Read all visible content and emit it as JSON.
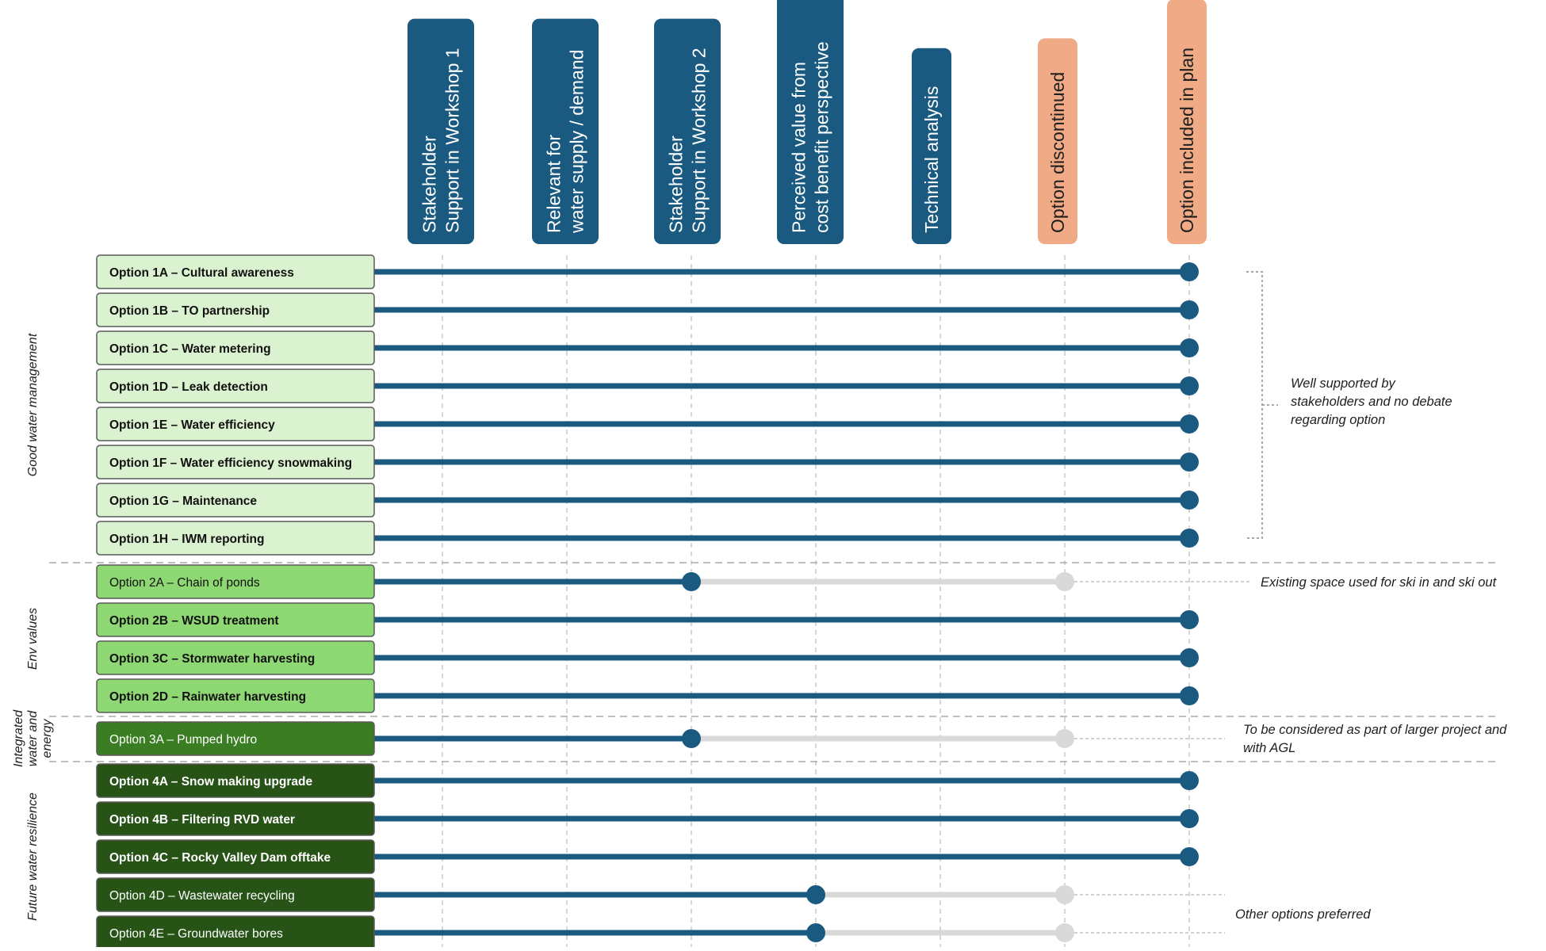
{
  "colors": {
    "navy": "#1a5a80",
    "salmon": "#f0aa85",
    "track_grey": "#d9d9d9",
    "light_green": "#daf2d0",
    "mid_green": "#8ed873",
    "dark_green": "#275317",
    "box_border": "#5a5a5a",
    "guide": "#c8c8c8"
  },
  "stages": [
    {
      "lines": [
        "Stakeholder",
        "Support in Workshop 1"
      ],
      "style": "navy"
    },
    {
      "lines": [
        "Relevant for",
        "water supply / demand"
      ],
      "style": "navy"
    },
    {
      "lines": [
        "Stakeholder",
        "Support in Workshop 2"
      ],
      "style": "navy"
    },
    {
      "lines": [
        "Perceived value from",
        "cost benefit perspective"
      ],
      "style": "navy"
    },
    {
      "lines": [
        "Technical analysis"
      ],
      "style": "navy"
    },
    {
      "lines": [
        "Option discontinued"
      ],
      "style": "salmon"
    },
    {
      "lines": [
        "Option included in plan"
      ],
      "style": "salmon"
    }
  ],
  "groups": [
    {
      "lines": [
        "Good water management"
      ],
      "first_row": 0,
      "last_row": 7
    },
    {
      "lines": [
        "Env values"
      ],
      "first_row": 8,
      "last_row": 11
    },
    {
      "lines": [
        "Integrated",
        "water and",
        "energy"
      ],
      "first_row": 12,
      "last_row": 12
    },
    {
      "lines": [
        "Future water resilience"
      ],
      "first_row": 13,
      "last_row": 17
    }
  ],
  "options": [
    {
      "code": "Option 1A",
      "name": "Cultural awareness",
      "tone": "light",
      "bold": true,
      "outcome": "included"
    },
    {
      "code": "Option 1B",
      "name": "TO partnership",
      "tone": "light",
      "bold": true,
      "outcome": "included"
    },
    {
      "code": "Option 1C",
      "name": "Water metering",
      "tone": "light",
      "bold": true,
      "outcome": "included"
    },
    {
      "code": "Option 1D",
      "name": "Leak detection",
      "tone": "light",
      "bold": true,
      "outcome": "included"
    },
    {
      "code": "Option 1E",
      "name": "Water efficiency",
      "tone": "light",
      "bold": true,
      "outcome": "included"
    },
    {
      "code": "Option 1F",
      "name": "Water efficiency snowmaking",
      "tone": "light",
      "bold": true,
      "outcome": "included"
    },
    {
      "code": "Option 1G",
      "name": "Maintenance",
      "tone": "light",
      "bold": true,
      "outcome": "included"
    },
    {
      "code": "Option 1H",
      "name": "IWM reporting",
      "tone": "light",
      "bold": true,
      "outcome": "included"
    },
    {
      "code": "Option 2A",
      "name": "Chain of ponds",
      "tone": "mid",
      "bold": false,
      "outcome": "discontinued",
      "stop_stage": 3
    },
    {
      "code": "Option 2B",
      "name": "WSUD treatment",
      "tone": "mid",
      "bold": true,
      "outcome": "included"
    },
    {
      "code": "Option 3C",
      "name": "Stormwater harvesting",
      "tone": "mid",
      "bold": true,
      "outcome": "included"
    },
    {
      "code": "Option 2D",
      "name": "Rainwater harvesting",
      "tone": "mid",
      "bold": true,
      "outcome": "included"
    },
    {
      "code": "Option 3A",
      "name": "Pumped hydro",
      "tone": "mid-dark",
      "bold": false,
      "outcome": "discontinued",
      "stop_stage": 3
    },
    {
      "code": "Option 4A",
      "name": "Snow making upgrade",
      "tone": "dark",
      "bold": true,
      "outcome": "included"
    },
    {
      "code": "Option 4B",
      "name": "Filtering RVD water",
      "tone": "dark",
      "bold": true,
      "outcome": "included"
    },
    {
      "code": "Option 4C",
      "name": "Rocky Valley Dam offtake",
      "tone": "dark",
      "bold": true,
      "outcome": "included"
    },
    {
      "code": "Option 4D",
      "name": "Wastewater recycling",
      "tone": "dark",
      "bold": false,
      "outcome": "discontinued",
      "stop_stage": 4
    },
    {
      "code": "Option 4E",
      "name": "Groundwater bores",
      "tone": "dark",
      "bold": false,
      "outcome": "discontinued",
      "stop_stage": 4
    }
  ],
  "annotations": [
    {
      "lines": [
        "Well supported by",
        "stakeholders and no debate",
        "regarding option"
      ],
      "rows": [
        0,
        7
      ],
      "kind": "bracket"
    },
    {
      "lines": [
        "Existing space used for ski in and ski out"
      ],
      "rows": [
        8
      ],
      "kind": "leader"
    },
    {
      "lines": [
        "To be considered as part of larger project and",
        "with AGL"
      ],
      "rows": [
        12
      ],
      "kind": "leader"
    },
    {
      "lines": [
        "Other options preferred"
      ],
      "rows": [
        16,
        17
      ],
      "kind": "leader"
    }
  ]
}
